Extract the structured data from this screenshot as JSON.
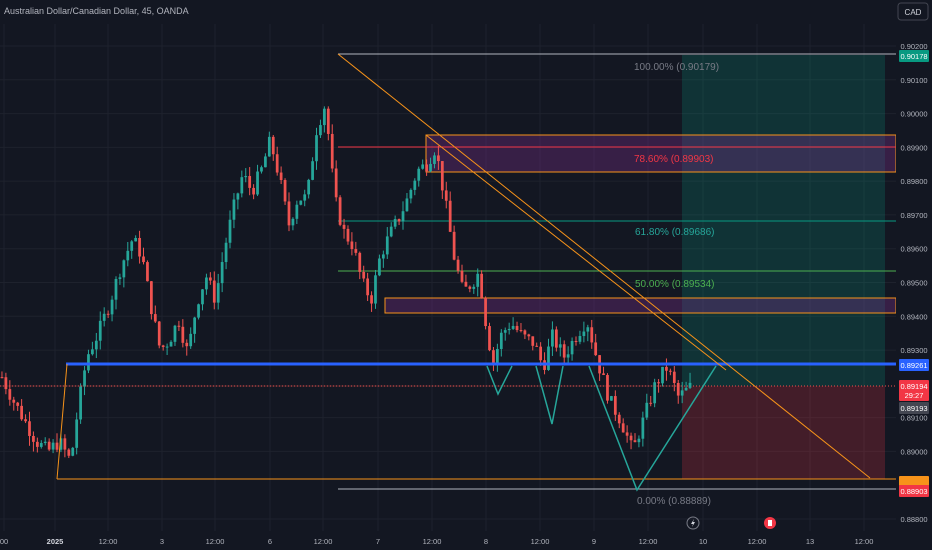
{
  "header": {
    "symbol_title": "Australian Dollar/Canadian Dollar, 45, OANDA",
    "currency_button": "CAD"
  },
  "price_axis": {
    "ticks": [
      "0.90200",
      "0.90100",
      "0.90000",
      "0.89900",
      "0.89800",
      "0.89700",
      "0.89600",
      "0.89500",
      "0.89400",
      "0.89300",
      "0.89100",
      "0.89000",
      "0.88800"
    ],
    "badges": {
      "top": "0.90178",
      "level": "0.89261",
      "current": "0.89194",
      "countdown": "29:27",
      "below_current": "0.89193",
      "stop": "0.88903"
    }
  },
  "time_axis": {
    "labels": [
      "00",
      "2025",
      "12:00",
      "3",
      "12:00",
      "6",
      "12:00",
      "7",
      "12:00",
      "8",
      "12:00",
      "9",
      "12:00",
      "10",
      "12:00",
      "13",
      "12:00"
    ]
  },
  "fib_labels": {
    "f100": "100.00% (0.90179)",
    "f786": "78.60% (0.89903)",
    "f618": "61.80% (0.89686)",
    "f500": "50.00% (0.89534)",
    "f000": "0.00% (0.88889)"
  },
  "colors": {
    "background": "#131722",
    "bull": "#26a69a",
    "bear": "#ef5350",
    "level_line": "#2962ff",
    "trend_line": "#f7931a",
    "fib_green": "#089981",
    "fib_red": "#f23645",
    "zone_purple": "#7b2f8a"
  },
  "chart_data": {
    "type": "candlestick",
    "instrument": "AUDCAD",
    "timeframe": "45",
    "ylim": [
      0.8875,
      0.9025
    ],
    "levels": {
      "fib_100": 0.90179,
      "fib_786": 0.89903,
      "fib_618": 0.89686,
      "fib_500": 0.89534,
      "fib_000": 0.88889,
      "neckline": 0.89261,
      "current_price": 0.89194,
      "target": 0.90178,
      "stop": 0.88903
    },
    "close_path": [
      [
        0,
        0.8922
      ],
      [
        5,
        0.8915
      ],
      [
        10,
        0.8909
      ],
      [
        15,
        0.8903
      ],
      [
        20,
        0.89
      ],
      [
        25,
        0.8903
      ],
      [
        30,
        0.8897
      ],
      [
        33,
        0.8912
      ],
      [
        37,
        0.8928
      ],
      [
        42,
        0.8935
      ],
      [
        47,
        0.8944
      ],
      [
        52,
        0.8955
      ],
      [
        57,
        0.8963
      ],
      [
        61,
        0.8958
      ],
      [
        65,
        0.8943
      ],
      [
        69,
        0.893
      ],
      [
        73,
        0.8933
      ],
      [
        77,
        0.8939
      ],
      [
        81,
        0.8929
      ],
      [
        85,
        0.8944
      ],
      [
        89,
        0.8952
      ],
      [
        93,
        0.8945
      ],
      [
        97,
        0.896
      ],
      [
        101,
        0.8972
      ],
      [
        105,
        0.8982
      ],
      [
        109,
        0.8977
      ],
      [
        113,
        0.8983
      ],
      [
        117,
        0.8992
      ],
      [
        121,
        0.8981
      ],
      [
        125,
        0.8967
      ],
      [
        129,
        0.8975
      ],
      [
        133,
        0.8975
      ],
      [
        137,
        0.8995
      ],
      [
        141,
        0.9003
      ],
      [
        145,
        0.8975
      ],
      [
        149,
        0.8965
      ],
      [
        153,
        0.8961
      ],
      [
        157,
        0.895
      ],
      [
        161,
        0.8945
      ],
      [
        165,
        0.8958
      ],
      [
        169,
        0.8964
      ],
      [
        173,
        0.8969
      ],
      [
        177,
        0.8975
      ],
      [
        181,
        0.8983
      ],
      [
        185,
        0.8985
      ],
      [
        189,
        0.899
      ],
      [
        193,
        0.8975
      ],
      [
        197,
        0.8958
      ],
      [
        201,
        0.8947
      ],
      [
        205,
        0.895
      ],
      [
        208,
        0.8953
      ],
      [
        211,
        0.8938
      ],
      [
        214,
        0.8926
      ],
      [
        218,
        0.8935
      ],
      [
        222,
        0.8938
      ],
      [
        227,
        0.8934
      ],
      [
        232,
        0.8932
      ],
      [
        236,
        0.8925
      ],
      [
        240,
        0.8934
      ],
      [
        245,
        0.8928
      ],
      [
        250,
        0.8934
      ],
      [
        255,
        0.8939
      ],
      [
        260,
        0.8926
      ],
      [
        265,
        0.8915
      ],
      [
        270,
        0.8909
      ],
      [
        275,
        0.89
      ],
      [
        280,
        0.891
      ],
      [
        285,
        0.892
      ],
      [
        290,
        0.8925
      ],
      [
        295,
        0.8916
      ],
      [
        300,
        0.8919
      ]
    ]
  }
}
